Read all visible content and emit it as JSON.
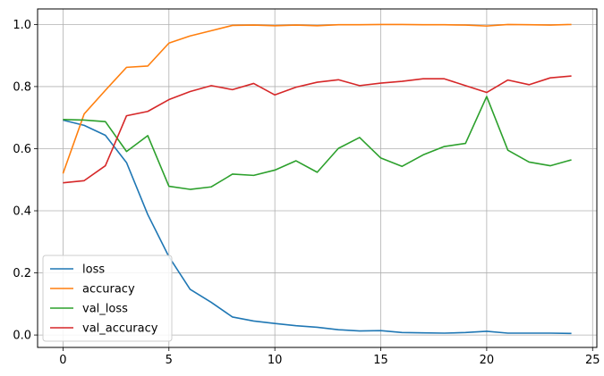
{
  "chart_data": {
    "type": "line",
    "title": "",
    "xlabel": "",
    "ylabel": "",
    "xlim": [
      -1.2,
      25.2
    ],
    "ylim": [
      -0.04,
      1.05
    ],
    "xticks": [
      0,
      5,
      10,
      15,
      20,
      25
    ],
    "yticks": [
      0.0,
      0.2,
      0.4,
      0.6,
      0.8,
      1.0
    ],
    "xtick_labels": [
      "0",
      "5",
      "10",
      "15",
      "20",
      "25"
    ],
    "ytick_labels": [
      "0.0",
      "0.2",
      "0.4",
      "0.6",
      "0.8",
      "1.0"
    ],
    "grid": true,
    "legend_position": "lower-left",
    "x": [
      0,
      1,
      2,
      3,
      4,
      5,
      6,
      7,
      8,
      9,
      10,
      11,
      12,
      13,
      14,
      15,
      16,
      17,
      18,
      19,
      20,
      21,
      22,
      23,
      24
    ],
    "series": [
      {
        "name": "loss",
        "color": "#1f77b4",
        "values": [
          0.692,
          0.675,
          0.643,
          0.555,
          0.388,
          0.252,
          0.147,
          0.105,
          0.058,
          0.045,
          0.037,
          0.03,
          0.025,
          0.017,
          0.013,
          0.014,
          0.008,
          0.007,
          0.006,
          0.008,
          0.012,
          0.006,
          0.006,
          0.006,
          0.005
        ]
      },
      {
        "name": "accuracy",
        "color": "#ff7f0e",
        "values": [
          0.52,
          0.712,
          0.788,
          0.862,
          0.866,
          0.94,
          0.963,
          0.98,
          0.997,
          0.998,
          0.996,
          0.998,
          0.996,
          0.999,
          0.999,
          1.0,
          1.0,
          0.999,
          0.999,
          0.998,
          0.995,
          1.0,
          0.999,
          0.998,
          1.0
        ]
      },
      {
        "name": "val_loss",
        "color": "#2ca02c",
        "values": [
          0.694,
          0.692,
          0.687,
          0.591,
          0.642,
          0.479,
          0.469,
          0.477,
          0.518,
          0.514,
          0.531,
          0.561,
          0.524,
          0.601,
          0.636,
          0.57,
          0.543,
          0.58,
          0.607,
          0.617,
          0.768,
          0.595,
          0.557,
          0.545,
          0.564
        ]
      },
      {
        "name": "val_accuracy",
        "color": "#d62728",
        "values": [
          0.49,
          0.497,
          0.545,
          0.706,
          0.72,
          0.758,
          0.784,
          0.803,
          0.79,
          0.81,
          0.773,
          0.798,
          0.814,
          0.822,
          0.803,
          0.811,
          0.817,
          0.825,
          0.825,
          0.803,
          0.781,
          0.821,
          0.806,
          0.828,
          0.834
        ]
      }
    ]
  }
}
